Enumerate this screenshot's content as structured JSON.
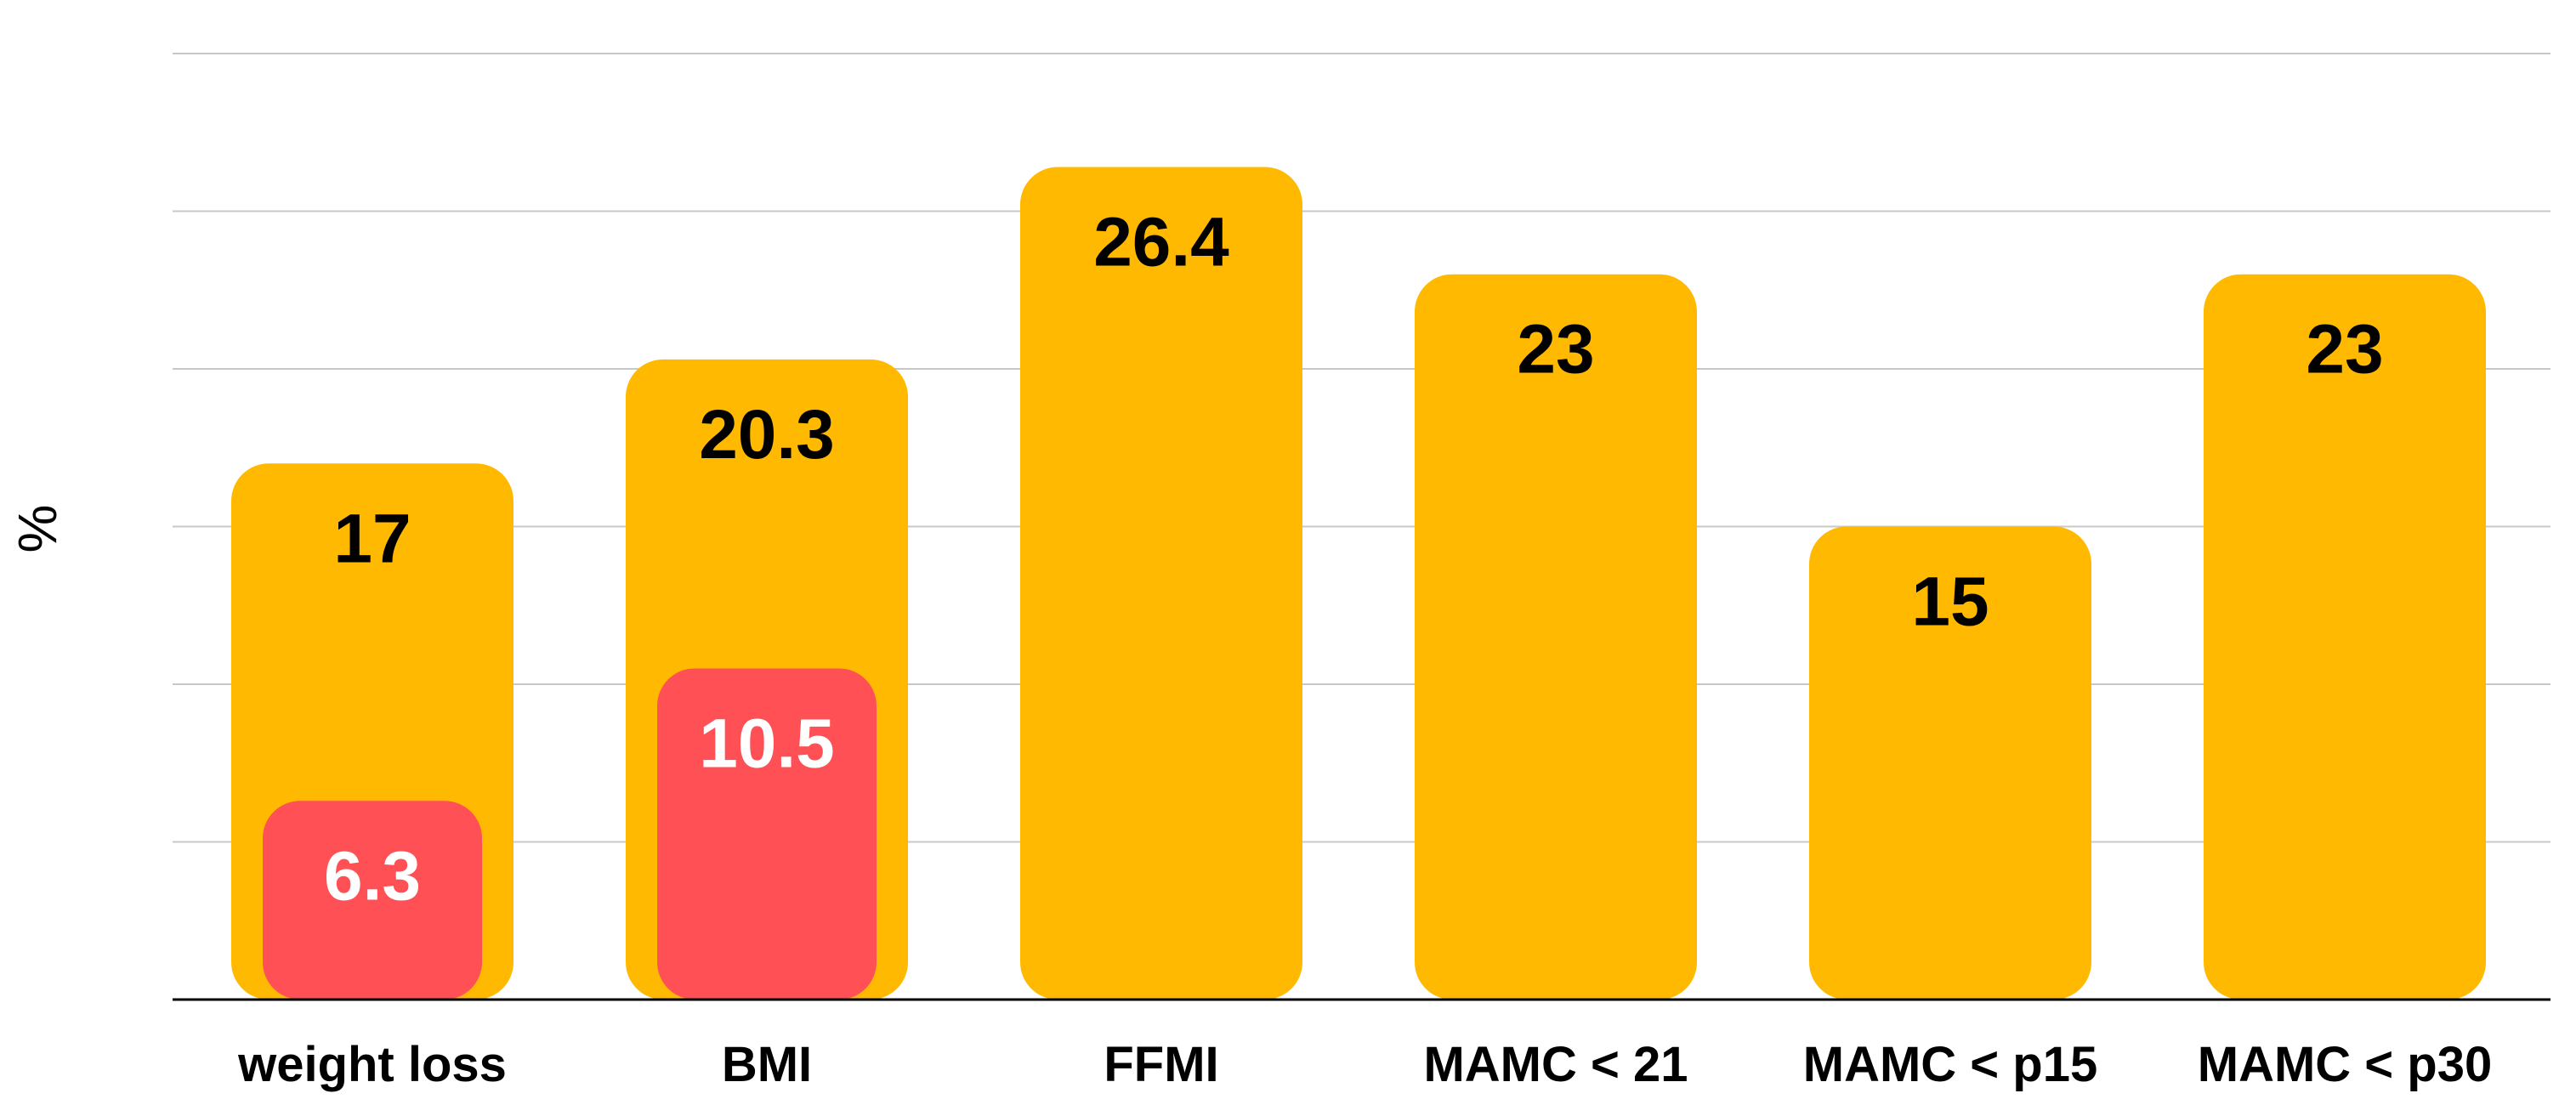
{
  "chart_data": {
    "type": "bar",
    "ylabel": "%",
    "ylim": [
      0,
      30
    ],
    "grid": true,
    "categories": [
      "weight loss",
      "BMI",
      "FFMI",
      "MAMC < 21",
      "MAMC < p15",
      "MAMC < p30"
    ],
    "series": [
      {
        "values": [
          17,
          20.3,
          26.4,
          23,
          15,
          23
        ],
        "color": "#FFB900",
        "label_color": "#000000"
      },
      {
        "values": [
          6.3,
          10.5,
          null,
          null,
          null,
          null
        ],
        "color": "#FF5055",
        "label_color": "#FFFFFF"
      }
    ]
  }
}
